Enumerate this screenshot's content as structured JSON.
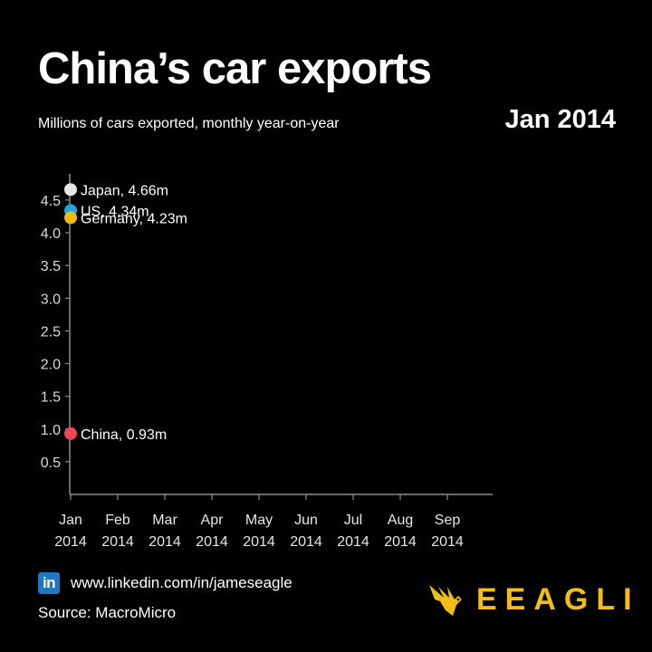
{
  "header": {
    "title": "China’s car exports",
    "subtitle": "Millions of cars exported, monthly year-on-year",
    "date": "Jan 2014"
  },
  "chart_data": {
    "type": "line",
    "x_categories": [
      [
        "Jan",
        "2014"
      ],
      [
        "Feb",
        "2014"
      ],
      [
        "Mar",
        "2014"
      ],
      [
        "Apr",
        "2014"
      ],
      [
        "May",
        "2014"
      ],
      [
        "Jun",
        "2014"
      ],
      [
        "Jul",
        "2014"
      ],
      [
        "Aug",
        "2014"
      ],
      [
        "Sep",
        "2014"
      ]
    ],
    "yticks": [
      "0.5",
      "1.0",
      "1.5",
      "2.0",
      "2.5",
      "3.0",
      "3.5",
      "4.0",
      "4.5"
    ],
    "ylim": [
      0,
      4.9
    ],
    "grid": false,
    "series": [
      {
        "name": "Japan",
        "label": "Japan, 4.66m",
        "color": "#e6e6e6",
        "values": [
          4.66
        ]
      },
      {
        "name": "US",
        "label": "US, 4.34m",
        "color": "#1aa7e6",
        "values": [
          4.34
        ]
      },
      {
        "name": "Germany",
        "label": "Germany, 4.23m",
        "color": "#f0b915",
        "values": [
          4.23
        ]
      },
      {
        "name": "China",
        "label": "China, 0.93m",
        "color": "#f2465a",
        "values": [
          0.93
        ]
      }
    ]
  },
  "footer": {
    "linkedin_icon_text": "in",
    "url": "www.linkedin.com/in/jameseagle",
    "source": "Source: MacroMicro",
    "brand": "EEAGLI",
    "brand_color": "#f2bd16"
  }
}
